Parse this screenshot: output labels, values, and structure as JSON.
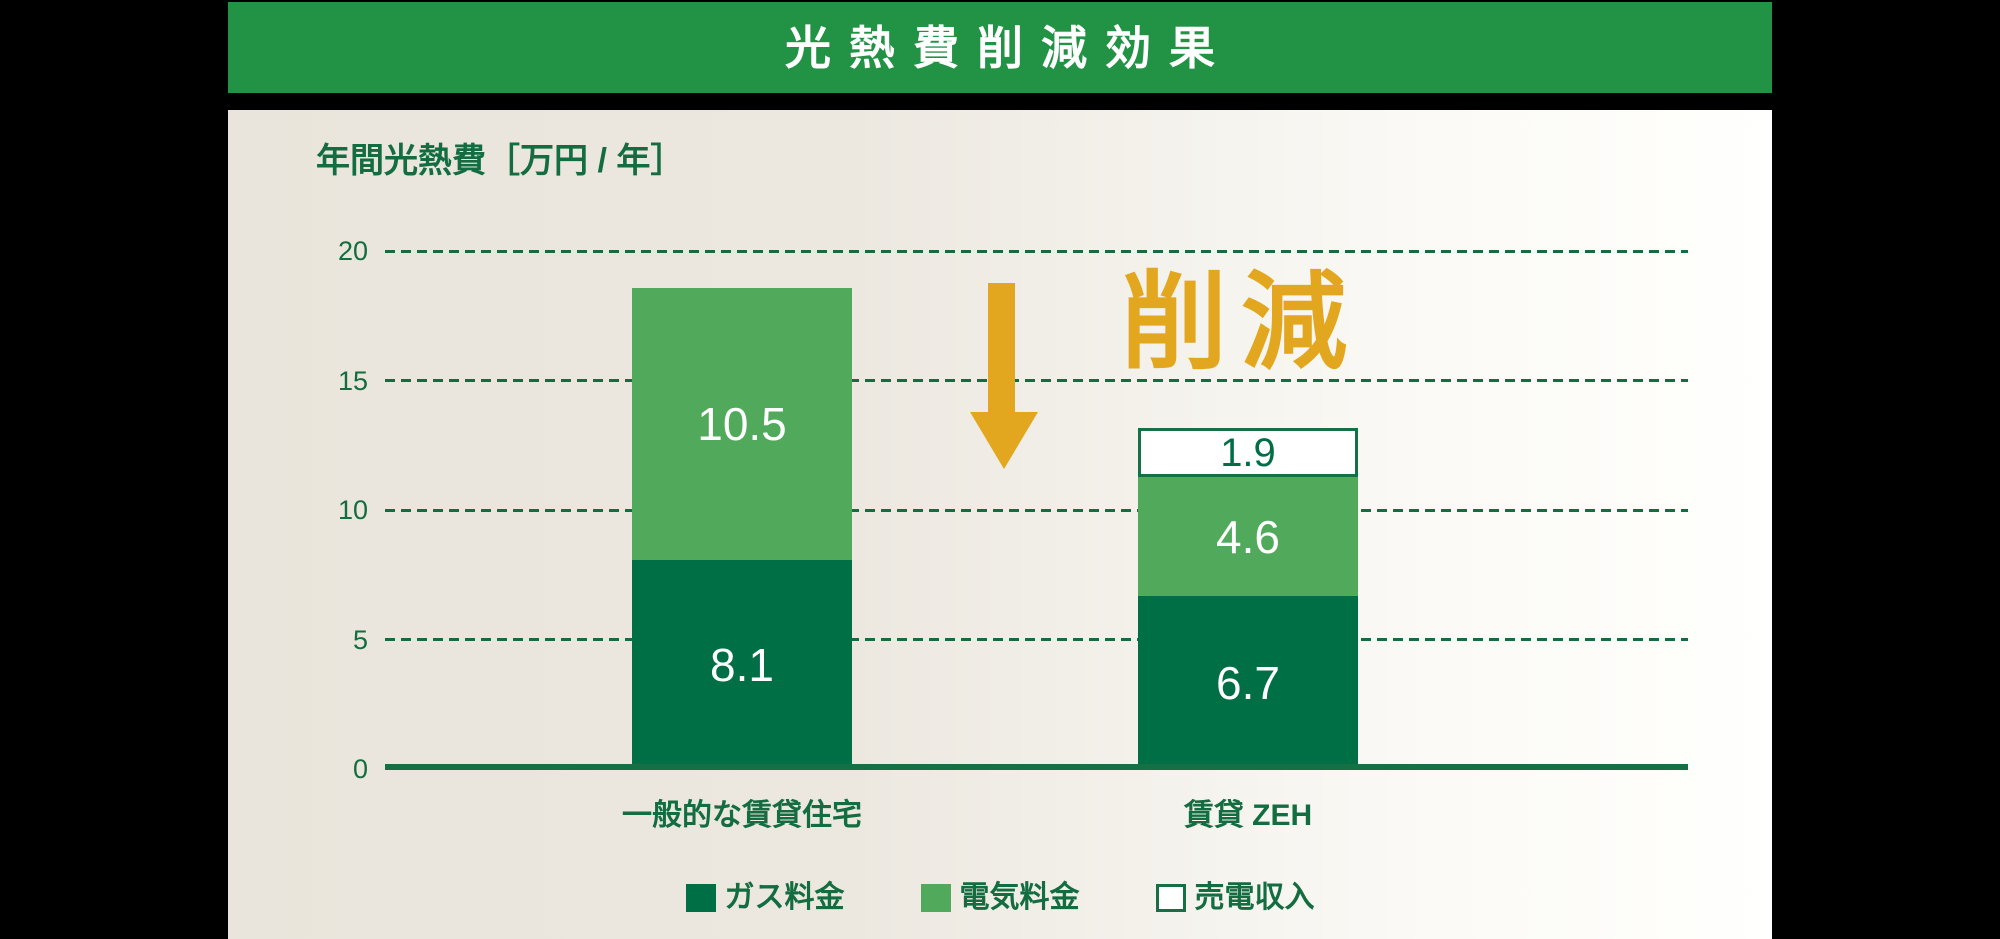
{
  "header": {
    "title": "光熱費削減効果"
  },
  "annotation": {
    "label": "削減",
    "color": "#e2a71e"
  },
  "axis": {
    "ylabel": "年間光熱費［万円 / 年］",
    "tick_labels": [
      "20",
      "15",
      "10",
      "5",
      "0"
    ]
  },
  "chart_data": {
    "type": "bar",
    "stacked": true,
    "title": "光熱費削減効果",
    "ylabel": "年間光熱費［万円 / 年］",
    "categories": [
      "一般的な賃貸住宅",
      "賃貸 ZEH"
    ],
    "series": [
      {
        "name": "ガス料金",
        "color": "#006f45",
        "values": [
          8.1,
          6.7
        ]
      },
      {
        "name": "電気料金",
        "color": "#51aa5c",
        "values": [
          10.5,
          4.6
        ]
      },
      {
        "name": "売電収入",
        "color": "#ffffff",
        "values": [
          null,
          1.9
        ]
      }
    ],
    "totals": [
      18.6,
      13.2
    ],
    "yticks": [
      0,
      5,
      10,
      15,
      20
    ],
    "ylim": [
      0,
      20
    ],
    "grid": "horizontal-dashed",
    "legend_position": "bottom",
    "annotation": {
      "text": "削減",
      "style": "down-arrow",
      "color": "#e2a71e"
    }
  },
  "colors": {
    "header_green": "#229245",
    "dark_green": "#006f45",
    "light_green": "#51aa5c",
    "line_green": "#146c41",
    "gold": "#e2a71e",
    "panel_left": "#e9e5dc",
    "panel_right": "#fffffd"
  }
}
